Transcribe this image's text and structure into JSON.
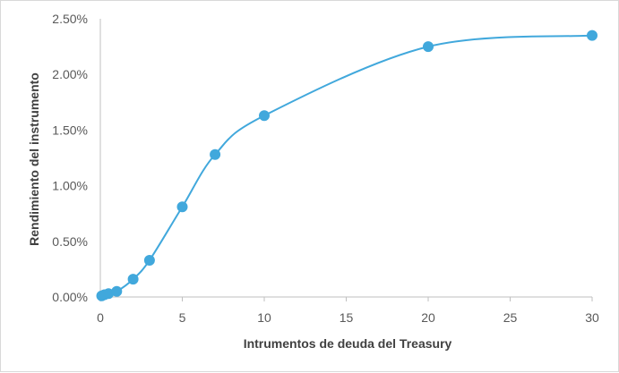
{
  "chart_data": {
    "type": "line",
    "title": "",
    "xlabel": "Intrumentos de deuda del Treasury",
    "ylabel": "Rendimiento del instrumento",
    "xlim": [
      0,
      30
    ],
    "ylim": [
      0,
      0.025
    ],
    "x_ticks": [
      0,
      5,
      10,
      15,
      20,
      25,
      30
    ],
    "x_tick_labels": [
      "0",
      "5",
      "10",
      "15",
      "20",
      "25",
      "30"
    ],
    "y_ticks": [
      0,
      0.005,
      0.01,
      0.015,
      0.02,
      0.025
    ],
    "y_tick_labels": [
      "0.00%",
      "0.50%",
      "1.00%",
      "1.50%",
      "2.00%",
      "2.50%"
    ],
    "grid": false,
    "smooth": true,
    "series": [
      {
        "color": "#41a8dc",
        "x": [
          0.083,
          0.25,
          0.5,
          1,
          2,
          3,
          5,
          7,
          10,
          20,
          30
        ],
        "y": [
          0.0001,
          0.0002,
          0.0003,
          0.0005,
          0.0016,
          0.0033,
          0.0081,
          0.0128,
          0.0163,
          0.0225,
          0.0235
        ]
      }
    ]
  }
}
